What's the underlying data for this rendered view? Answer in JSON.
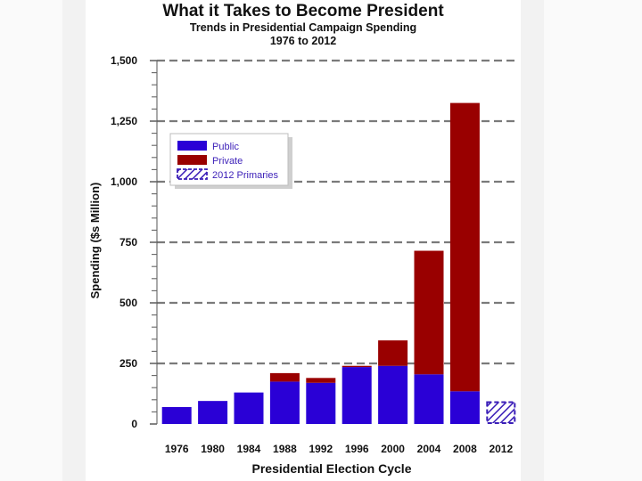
{
  "chart_data": {
    "type": "bar",
    "title": "What it Takes to Become President",
    "subtitle_line1": "Trends in Presidential Campaign Spending",
    "subtitle_line2": "1976 to 2012",
    "xlabel": "Presidential Election Cycle",
    "ylabel": "Spending ($s Million)",
    "ylim": [
      0,
      1500
    ],
    "yticks": [
      {
        "value": 0,
        "label": "0"
      },
      {
        "value": 250,
        "label": "250"
      },
      {
        "value": 500,
        "label": "500"
      },
      {
        "value": 750,
        "label": "750"
      },
      {
        "value": 1000,
        "label": "1,000"
      },
      {
        "value": 1250,
        "label": "1,250"
      },
      {
        "value": 1500,
        "label": "1,500"
      }
    ],
    "grid": "dashed horizontal",
    "legend_position": "top-left",
    "categories": [
      "1976",
      "1980",
      "1984",
      "1988",
      "1992",
      "1996",
      "2000",
      "2004",
      "2008",
      "2012"
    ],
    "series": [
      {
        "name": "Public",
        "color": "#2a00d6",
        "stack": "total",
        "values": [
          70,
          95,
          130,
          175,
          170,
          235,
          240,
          205,
          135,
          null
        ]
      },
      {
        "name": "Private",
        "color": "#990000",
        "stack": "total",
        "values": [
          0,
          0,
          0,
          35,
          20,
          5,
          105,
          510,
          1190,
          null
        ]
      },
      {
        "name": "2012 Primaries",
        "color": "#3b1fb8",
        "pattern": "hatched",
        "values": [
          null,
          null,
          null,
          null,
          null,
          null,
          null,
          null,
          null,
          90
        ]
      }
    ]
  }
}
